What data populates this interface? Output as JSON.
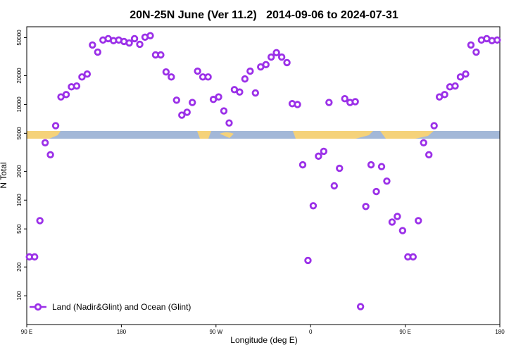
{
  "chart_data": {
    "type": "scatter",
    "title": "20N-25N June (Ver 11.2)   2014-09-06 to 2024-07-31",
    "xlabel": "Longitude (deg E)",
    "ylabel": "N Total",
    "log_y": true,
    "legend": "lower left",
    "xlim": [
      90,
      540
    ],
    "ylim": [
      50,
      65000
    ],
    "xticks": [
      {
        "value": 90,
        "label": "90 E"
      },
      {
        "value": 180,
        "label": "180"
      },
      {
        "value": 270,
        "label": "90 W"
      },
      {
        "value": 360,
        "label": "0"
      },
      {
        "value": 450,
        "label": "90 E"
      },
      {
        "value": 540,
        "label": "180"
      }
    ],
    "yticks": [
      100,
      200,
      500,
      1000,
      2000,
      5000,
      10000,
      20000,
      50000
    ],
    "x": [
      92.5,
      97.5,
      102.5,
      107.5,
      112.5,
      117.5,
      122.5,
      127.5,
      132.5,
      137.5,
      142.5,
      147.5,
      152.5,
      157.5,
      162.5,
      167.5,
      172.5,
      177.5,
      182.5,
      187.5,
      192.5,
      197.5,
      202.5,
      207.5,
      212.5,
      217.5,
      222.5,
      227.5,
      232.5,
      237.5,
      242.5,
      247.5,
      252.5,
      257.5,
      262.5,
      267.5,
      272.5,
      277.5,
      282.5,
      287.5,
      292.5,
      297.5,
      302.5,
      307.5,
      312.5,
      317.5,
      322.5,
      327.5,
      332.5,
      337.5,
      342.5,
      347.5,
      352.5,
      357.5,
      362.5,
      367.5,
      372.5,
      377.5,
      382.5,
      387.5,
      392.5,
      397.5,
      402.5,
      407.5,
      412.5,
      417.5,
      422.5,
      427.5,
      432.5,
      437.5,
      442.5,
      447.5,
      452.5,
      457.5,
      462.5,
      467.5,
      472.5,
      477.5,
      482.5,
      487.5,
      492.5,
      497.5,
      502.5,
      507.5,
      512.5,
      517.5,
      522.5,
      527.5,
      532.5,
      537.5
    ],
    "series": [
      {
        "name": "Land (Nadir&Glint) and Ocean (Glint)",
        "color": "#9b30e8",
        "values": [
          255,
          255,
          610,
          3980,
          2980,
          6000,
          12000,
          12700,
          15300,
          15600,
          19400,
          20800,
          41900,
          35300,
          47200,
          48800,
          46500,
          47200,
          45600,
          44000,
          48800,
          42600,
          50600,
          52400,
          33000,
          33000,
          21900,
          19400,
          11100,
          7740,
          8300,
          10500,
          22300,
          19400,
          19400,
          11300,
          12000,
          8570,
          6410,
          14300,
          13500,
          18500,
          22300,
          13200,
          24700,
          26100,
          31300,
          34800,
          31300,
          27400,
          10200,
          10000,
          2340,
          234,
          873,
          2880,
          3240,
          10500,
          1410,
          2150,
          11500,
          10500,
          10700,
          77,
          858,
          2340,
          1230,
          2240,
          1580,
          590,
          675,
          480,
          255,
          255,
          610,
          3980,
          2980,
          6000,
          12000,
          12700,
          15300,
          15600,
          19400,
          20800,
          41900,
          35300,
          47200,
          48800,
          46500,
          47200
        ]
      }
    ]
  }
}
